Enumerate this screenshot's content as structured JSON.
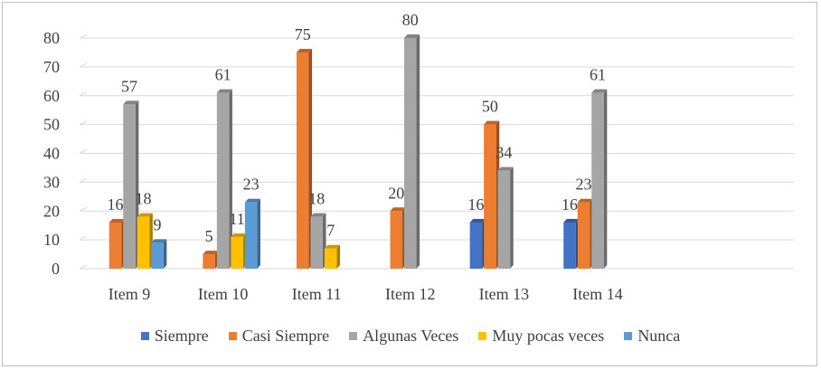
{
  "chart_data": {
    "type": "bar",
    "title": "",
    "xlabel": "",
    "ylabel": "",
    "ylim": [
      0,
      80
    ],
    "yticks": [
      0,
      10,
      20,
      30,
      40,
      50,
      60,
      70,
      80
    ],
    "grid": true,
    "legend_position": "bottom",
    "categories": [
      "Item 9",
      "Item 10",
      "Item 11",
      "Item 12",
      "Item 13",
      "Item 14"
    ],
    "series": [
      {
        "name": "Siempre",
        "color": "#4472c4",
        "values": [
          null,
          null,
          null,
          null,
          16,
          16
        ]
      },
      {
        "name": "Casi Siempre",
        "color": "#ed7d31",
        "values": [
          16,
          5,
          75,
          20,
          50,
          23
        ]
      },
      {
        "name": "Algunas Veces",
        "color": "#a5a5a5",
        "values": [
          57,
          61,
          18,
          80,
          34,
          61
        ]
      },
      {
        "name": "Muy pocas veces",
        "color": "#ffc000",
        "values": [
          18,
          11,
          7,
          null,
          null,
          null
        ]
      },
      {
        "name": "Nunca",
        "color": "#5b9bd5",
        "values": [
          9,
          23,
          null,
          null,
          null,
          null
        ]
      }
    ]
  }
}
